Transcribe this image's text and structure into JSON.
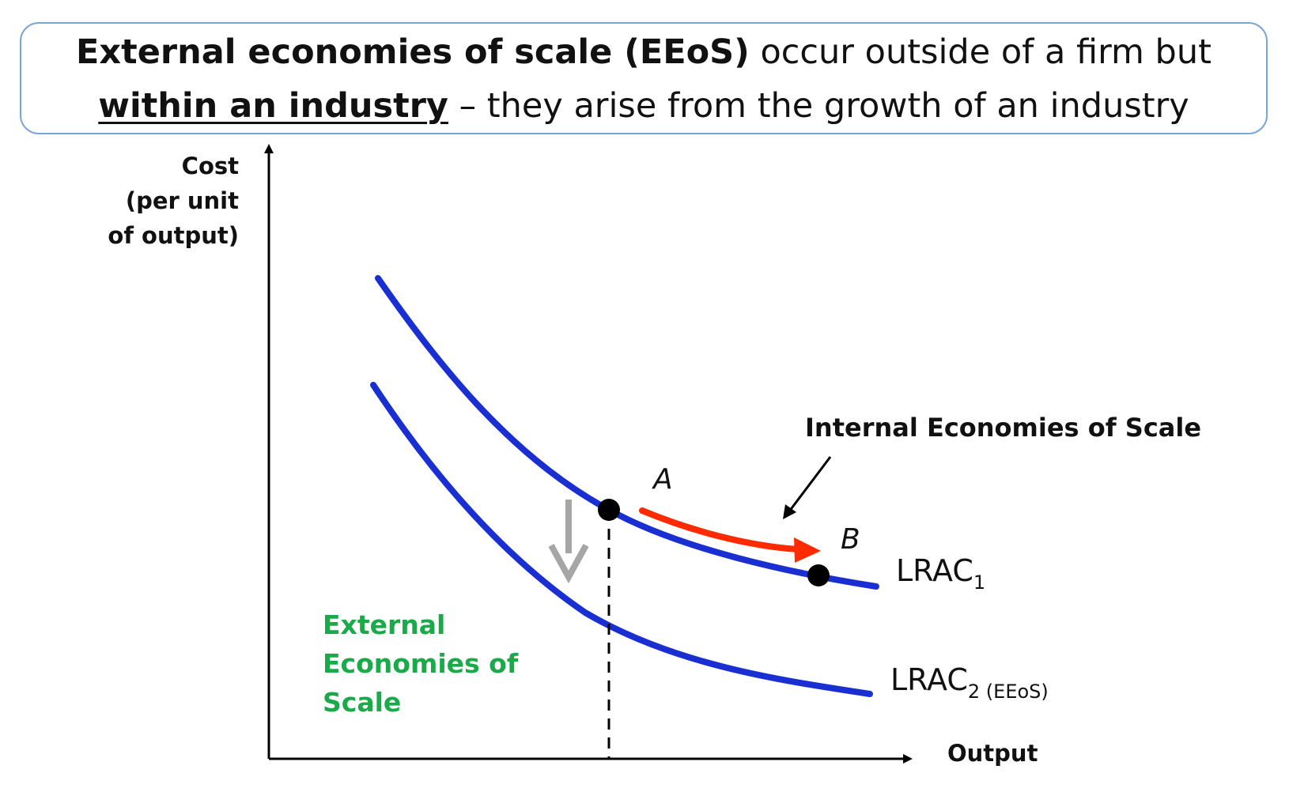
{
  "header": {
    "bold_part": "External economies of scale (EEoS)",
    "part1": " occur outside of a firm but ",
    "underlined_part": "within an industry",
    "part2": " – they arise from the growth of an industry"
  },
  "axes": {
    "y_label_line1": "Cost",
    "y_label_line2": "(per unit",
    "y_label_line3": "of output)",
    "x_label": "Output"
  },
  "points": {
    "a": "A",
    "b": "B"
  },
  "curves": {
    "lrac1_main": "LRAC",
    "lrac1_sub": "1",
    "lrac2_main": "LRAC",
    "lrac2_sub": "2 (EEoS)"
  },
  "annotations": {
    "internal": "Internal Economies of Scale",
    "external": "External Economies of Scale"
  },
  "colors": {
    "curve": "#1a2fd1",
    "red_arrow": "#ff2a00",
    "grey_arrow": "#a6a6a6",
    "external_text": "#1aaa4a",
    "box_border": "#7ba5d9"
  }
}
